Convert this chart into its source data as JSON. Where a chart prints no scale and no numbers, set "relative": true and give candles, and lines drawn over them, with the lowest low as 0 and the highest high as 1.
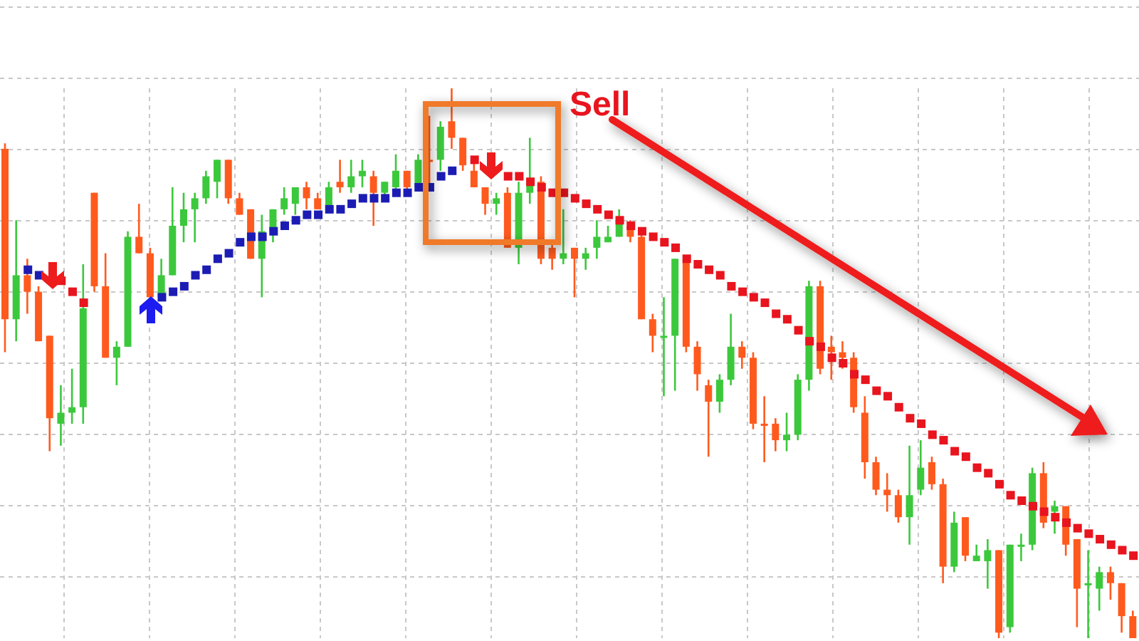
{
  "chart_data": {
    "type": "candlestick",
    "relative": true,
    "grid": true,
    "marker": "square",
    "annotations": [
      "Sell"
    ],
    "categories": [
      null,
      null,
      null,
      null,
      null,
      null,
      null,
      null,
      null,
      null,
      null,
      null,
      null,
      null,
      null,
      null,
      null,
      null,
      null,
      null,
      null,
      null,
      null,
      null,
      null,
      null,
      null,
      null,
      null,
      null,
      null,
      null,
      null,
      null,
      null,
      null,
      null,
      null,
      null,
      null,
      null,
      null,
      null,
      null,
      null,
      null,
      null,
      null,
      null,
      null,
      null,
      null,
      null,
      null,
      null,
      null,
      null,
      null,
      null,
      null,
      null,
      null,
      null,
      null,
      null,
      null,
      null,
      null,
      null,
      null,
      null,
      null,
      null,
      null,
      null,
      null,
      null,
      null,
      null,
      null,
      null,
      null,
      null,
      null,
      null,
      null,
      null,
      null,
      null,
      null,
      null,
      null,
      null,
      null,
      null,
      null,
      null,
      null,
      null,
      null,
      null,
      null
    ],
    "ohlc": [
      [
        0.89,
        0.9,
        0.52,
        0.58
      ],
      [
        0.58,
        0.76,
        0.54,
        0.66
      ],
      [
        0.66,
        0.69,
        0.59,
        0.63
      ],
      [
        0.63,
        0.64,
        0.54,
        0.54
      ],
      [
        0.55,
        0.55,
        0.34,
        0.4
      ],
      [
        0.39,
        0.46,
        0.35,
        0.41
      ],
      [
        0.41,
        0.49,
        0.39,
        0.42
      ],
      [
        0.42,
        0.68,
        0.39,
        0.6
      ],
      [
        0.81,
        0.81,
        0.63,
        0.64
      ],
      [
        0.64,
        0.7,
        0.51,
        0.51
      ],
      [
        0.51,
        0.54,
        0.46,
        0.53
      ],
      [
        0.53,
        0.74,
        0.53,
        0.73
      ],
      [
        0.73,
        0.79,
        0.7,
        0.7
      ],
      [
        0.7,
        0.71,
        0.62,
        0.62
      ],
      [
        0.62,
        0.69,
        0.62,
        0.66
      ],
      [
        0.66,
        0.82,
        0.66,
        0.75
      ],
      [
        0.75,
        0.81,
        0.72,
        0.78
      ],
      [
        0.78,
        0.81,
        0.72,
        0.8
      ],
      [
        0.8,
        0.85,
        0.79,
        0.84
      ],
      [
        0.83,
        0.87,
        0.8,
        0.87
      ],
      [
        0.87,
        0.87,
        0.79,
        0.8
      ],
      [
        0.8,
        0.81,
        0.77,
        0.77
      ],
      [
        0.78,
        0.78,
        0.69,
        0.69
      ],
      [
        0.69,
        0.77,
        0.62,
        0.74
      ],
      [
        0.74,
        0.78,
        0.72,
        0.78
      ],
      [
        0.78,
        0.82,
        0.77,
        0.8
      ],
      [
        0.79,
        0.82,
        0.77,
        0.82
      ],
      [
        0.82,
        0.83,
        0.78,
        0.8
      ],
      [
        0.8,
        0.81,
        0.78,
        0.78
      ],
      [
        0.78,
        0.83,
        0.78,
        0.82
      ],
      [
        0.83,
        0.87,
        0.81,
        0.82
      ],
      [
        0.82,
        0.87,
        0.81,
        0.84
      ],
      [
        0.84,
        0.87,
        0.82,
        0.85
      ],
      [
        0.84,
        0.85,
        0.75,
        0.81
      ],
      [
        0.81,
        0.83,
        0.8,
        0.83
      ],
      [
        0.82,
        0.88,
        0.81,
        0.85
      ],
      [
        0.85,
        0.85,
        0.81,
        0.82
      ],
      [
        0.82,
        0.88,
        0.82,
        0.87
      ],
      [
        0.87,
        0.95,
        0.82,
        0.87
      ],
      [
        0.87,
        0.94,
        0.85,
        0.93
      ],
      [
        0.94,
        1.0,
        0.89,
        0.91
      ],
      [
        0.91,
        0.91,
        0.85,
        0.86
      ],
      [
        0.85,
        0.87,
        0.82,
        0.82
      ],
      [
        0.82,
        0.82,
        0.77,
        0.79
      ],
      [
        0.79,
        0.81,
        0.77,
        0.8
      ],
      [
        0.81,
        0.82,
        0.71,
        0.71
      ],
      [
        0.71,
        0.83,
        0.68,
        0.81
      ],
      [
        0.81,
        0.91,
        0.79,
        0.83
      ],
      [
        0.83,
        0.84,
        0.68,
        0.69
      ],
      [
        0.71,
        0.72,
        0.67,
        0.69
      ],
      [
        0.69,
        0.78,
        0.68,
        0.7
      ],
      [
        0.71,
        0.71,
        0.62,
        0.69
      ],
      [
        0.69,
        0.71,
        0.67,
        0.7
      ],
      [
        0.71,
        0.76,
        0.69,
        0.73
      ],
      [
        0.72,
        0.75,
        0.72,
        0.73
      ],
      [
        0.73,
        0.78,
        0.73,
        0.76
      ],
      [
        0.75,
        0.76,
        0.72,
        0.73
      ],
      [
        0.73,
        0.74,
        0.58,
        0.58
      ],
      [
        0.58,
        0.59,
        0.52,
        0.55
      ],
      [
        0.55,
        0.62,
        0.44,
        0.55
      ],
      [
        0.55,
        0.69,
        0.45,
        0.69
      ],
      [
        0.69,
        0.69,
        0.52,
        0.53
      ],
      [
        0.53,
        0.54,
        0.45,
        0.48
      ],
      [
        0.46,
        0.47,
        0.33,
        0.43
      ],
      [
        0.43,
        0.48,
        0.41,
        0.47
      ],
      [
        0.47,
        0.59,
        0.46,
        0.53
      ],
      [
        0.53,
        0.54,
        0.49,
        0.51
      ],
      [
        0.51,
        0.52,
        0.38,
        0.39
      ],
      [
        0.39,
        0.44,
        0.32,
        0.39
      ],
      [
        0.39,
        0.4,
        0.34,
        0.36
      ],
      [
        0.36,
        0.41,
        0.34,
        0.37
      ],
      [
        0.37,
        0.48,
        0.36,
        0.47
      ],
      [
        0.47,
        0.65,
        0.45,
        0.64
      ],
      [
        0.64,
        0.65,
        0.48,
        0.49
      ],
      [
        0.53,
        0.55,
        0.47,
        0.52
      ],
      [
        0.52,
        0.54,
        0.49,
        0.51
      ],
      [
        0.51,
        0.52,
        0.41,
        0.42
      ],
      [
        0.41,
        0.44,
        0.29,
        0.32
      ],
      [
        0.32,
        0.33,
        0.26,
        0.27
      ],
      [
        0.27,
        0.3,
        0.23,
        0.26
      ],
      [
        0.26,
        0.27,
        0.21,
        0.22
      ],
      [
        0.22,
        0.35,
        0.17,
        0.26
      ],
      [
        0.27,
        0.36,
        0.26,
        0.31
      ],
      [
        0.32,
        0.33,
        0.27,
        0.28
      ],
      [
        0.28,
        0.29,
        0.1,
        0.13
      ],
      [
        0.13,
        0.23,
        0.12,
        0.21
      ],
      [
        0.22,
        0.22,
        0.14,
        0.15
      ],
      [
        0.14,
        0.17,
        0.14,
        0.15
      ],
      [
        0.14,
        0.18,
        0.09,
        0.16
      ],
      [
        0.16,
        0.16,
        0.0,
        0.01
      ],
      [
        0.02,
        0.17,
        0.01,
        0.17
      ],
      [
        0.17,
        0.19,
        0.14,
        0.17
      ],
      [
        0.17,
        0.31,
        0.16,
        0.3
      ],
      [
        0.3,
        0.32,
        0.2,
        0.21
      ],
      [
        0.23,
        0.25,
        0.19,
        0.24
      ],
      [
        0.24,
        0.24,
        0.15,
        0.17
      ],
      [
        0.18,
        0.18,
        0.02,
        0.09
      ],
      [
        0.1,
        0.16,
        0.0,
        0.1
      ],
      [
        0.09,
        0.13,
        0.05,
        0.12
      ],
      [
        0.12,
        0.13,
        0.07,
        0.1
      ],
      [
        0.1,
        0.1,
        0.01,
        0.04
      ],
      [
        0.04,
        0.05,
        0.0,
        0.0
      ]
    ],
    "colors": [
      "#ff5a1e",
      "#3cc83c",
      "#ff5a1e",
      "#ff5a1e",
      "#ff5a1e",
      "#3cc83c",
      "#3cc83c",
      "#3cc83c",
      "#ff5a1e",
      "#ff5a1e",
      "#3cc83c",
      "#3cc83c",
      "#ff5a1e",
      "#ff5a1e",
      "#3cc83c",
      "#3cc83c",
      "#3cc83c",
      "#3cc83c",
      "#3cc83c",
      "#3cc83c",
      "#ff5a1e",
      "#ff5a1e",
      "#ff5a1e",
      "#3cc83c",
      "#3cc83c",
      "#3cc83c",
      "#3cc83c",
      "#ff5a1e",
      "#ff5a1e",
      "#3cc83c",
      "#ff5a1e",
      "#3cc83c",
      "#3cc83c",
      "#ff5a1e",
      "#3cc83c",
      "#3cc83c",
      "#ff5a1e",
      "#3cc83c",
      "#ff5a1e",
      "#3cc83c",
      "#ff5a1e",
      "#ff5a1e",
      "#ff5a1e",
      "#ff5a1e",
      "#3cc83c",
      "#ff5a1e",
      "#3cc83c",
      "#3cc83c",
      "#ff5a1e",
      "#ff5a1e",
      "#3cc83c",
      "#ff5a1e",
      "#3cc83c",
      "#3cc83c",
      "#3cc83c",
      "#3cc83c",
      "#ff5a1e",
      "#ff5a1e",
      "#ff5a1e",
      "#3cc83c",
      "#3cc83c",
      "#ff5a1e",
      "#ff5a1e",
      "#ff5a1e",
      "#3cc83c",
      "#3cc83c",
      "#ff5a1e",
      "#ff5a1e",
      "#ff5a1e",
      "#ff5a1e",
      "#3cc83c",
      "#3cc83c",
      "#3cc83c",
      "#ff5a1e",
      "#ff5a1e",
      "#ff5a1e",
      "#ff5a1e",
      "#ff5a1e",
      "#ff5a1e",
      "#ff5a1e",
      "#ff5a1e",
      "#3cc83c",
      "#3cc83c",
      "#ff5a1e",
      "#ff5a1e",
      "#3cc83c",
      "#ff5a1e",
      "#3cc83c",
      "#3cc83c",
      "#ff5a1e",
      "#3cc83c",
      "#3cc83c",
      "#3cc83c",
      "#ff5a1e",
      "#3cc83c",
      "#ff5a1e",
      "#ff5a1e",
      "#3cc83c",
      "#3cc83c",
      "#ff5a1e",
      "#ff5a1e",
      "#ff5a1e"
    ],
    "series": [
      {
        "type": "scatter",
        "color": "#1c1cb4",
        "values": [
          null,
          null,
          0.67,
          0.66,
          null,
          null,
          null,
          null,
          null,
          null,
          null,
          null,
          null,
          null,
          0.62,
          0.63,
          0.64,
          0.66,
          0.67,
          0.69,
          0.7,
          0.72,
          0.73,
          0.73,
          0.74,
          0.75,
          0.76,
          0.77,
          0.77,
          0.78,
          0.78,
          0.79,
          0.8,
          0.8,
          0.8,
          0.81,
          0.81,
          0.82,
          0.82,
          0.84,
          0.85,
          null,
          null,
          null,
          null,
          null,
          null,
          null,
          null,
          null,
          null,
          null,
          null,
          null,
          null,
          null,
          null,
          null,
          null,
          null,
          null,
          null,
          null,
          null,
          null,
          null,
          null,
          null,
          null,
          null,
          null,
          null,
          null,
          null,
          null,
          null,
          null,
          null,
          null,
          null,
          null,
          null,
          null,
          null,
          null,
          null,
          null,
          null,
          null,
          null,
          null,
          null,
          null,
          null,
          null,
          null,
          null,
          null,
          null,
          null,
          null,
          null
        ]
      },
      {
        "type": "scatter",
        "color": "#e8141e",
        "values": [
          null,
          null,
          null,
          null,
          null,
          0.65,
          0.63,
          0.61,
          null,
          null,
          null,
          null,
          null,
          null,
          null,
          null,
          null,
          null,
          null,
          null,
          null,
          null,
          null,
          null,
          null,
          null,
          null,
          null,
          null,
          null,
          null,
          null,
          null,
          null,
          null,
          null,
          null,
          null,
          null,
          null,
          null,
          null,
          0.87,
          null,
          null,
          0.84,
          0.84,
          0.83,
          0.82,
          0.81,
          0.81,
          0.8,
          0.79,
          0.78,
          0.77,
          0.76,
          0.75,
          0.74,
          0.73,
          0.72,
          0.71,
          0.69,
          0.68,
          0.67,
          0.66,
          0.64,
          0.63,
          0.62,
          0.61,
          0.59,
          0.58,
          0.56,
          0.54,
          0.53,
          0.51,
          0.5,
          0.48,
          0.47,
          0.45,
          0.44,
          0.42,
          0.4,
          0.39,
          0.37,
          0.36,
          0.34,
          0.33,
          0.31,
          0.3,
          0.28,
          0.26,
          0.25,
          0.24,
          0.23,
          0.22,
          0.21,
          0.2,
          0.19,
          0.18,
          0.17,
          0.16,
          0.15
        ]
      }
    ]
  }
}
